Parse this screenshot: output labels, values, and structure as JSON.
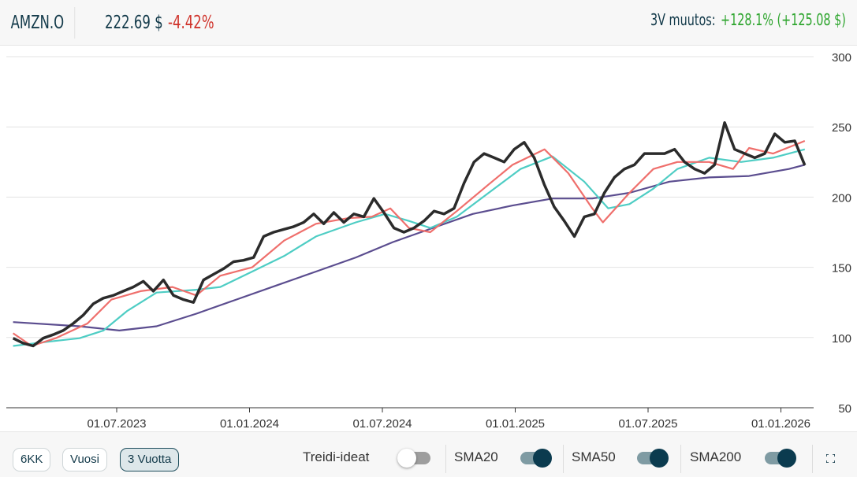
{
  "header": {
    "ticker": "AMZN.O",
    "price": "222.69 $",
    "change_pct": "-4.42%",
    "period_label": "3V muutos:",
    "period_change": "+128.1% (+125.08 $)"
  },
  "controls": {
    "ranges": [
      {
        "label": "6KK",
        "active": false
      },
      {
        "label": "Vuosi",
        "active": false
      },
      {
        "label": "3 Vuotta",
        "active": true
      }
    ],
    "toggles": [
      {
        "label": "Treidi-ideat",
        "on": false
      },
      {
        "label": "SMA20",
        "on": true
      },
      {
        "label": "SMA50",
        "on": true
      },
      {
        "label": "SMA200",
        "on": true
      }
    ]
  },
  "colors": {
    "price": "#2b2b2b",
    "sma20": "#ef6f6c",
    "sma50": "#4ecdc4",
    "sma200": "#5b4d8f",
    "accent": "#0b3b4f"
  },
  "chart_data": {
    "type": "line",
    "title": "AMZN.O",
    "xlabel": "",
    "ylabel": "",
    "ylim": [
      50,
      300
    ],
    "yticks": [
      50,
      100,
      150,
      200,
      250,
      300
    ],
    "xlim": [
      2023.11,
      2026.1
    ],
    "xticks": [
      {
        "x": 2023.5,
        "label": "01.07.2023"
      },
      {
        "x": 2024.0,
        "label": "01.01.2024"
      },
      {
        "x": 2024.5,
        "label": "01.07.2024"
      },
      {
        "x": 2025.0,
        "label": "01.01.2025"
      },
      {
        "x": 2025.5,
        "label": "01.07.2025"
      },
      {
        "x": 2026.0,
        "label": "01.01.2026"
      }
    ],
    "grid": true,
    "series": [
      {
        "name": "AMZN.O",
        "key": "price",
        "x_start": 2023.11,
        "x_end": 2026.09,
        "values": [
          99.5,
          96,
          94,
          99.5,
          102,
          105,
          110,
          116,
          124,
          128,
          130,
          133,
          136,
          140,
          133,
          141,
          130,
          127,
          125,
          141,
          145,
          149,
          154,
          155,
          157,
          172,
          175,
          177,
          179,
          182,
          188,
          181,
          189,
          182,
          188,
          186,
          199,
          189,
          178,
          175,
          178,
          183,
          190,
          188,
          192,
          210,
          225,
          231,
          228,
          225,
          234,
          239,
          228,
          209,
          193,
          183,
          172,
          186,
          188,
          203,
          214,
          220,
          223,
          231,
          231,
          231,
          234,
          225,
          220,
          217,
          223,
          253,
          234,
          231,
          228,
          231,
          245,
          239,
          240,
          222.69
        ]
      },
      {
        "name": "SMA20",
        "key": "sma20",
        "points": [
          [
            2023.11,
            103
          ],
          [
            2023.18,
            94
          ],
          [
            2023.27,
            99.5
          ],
          [
            2023.39,
            110
          ],
          [
            2023.48,
            127
          ],
          [
            2023.59,
            133
          ],
          [
            2023.71,
            136
          ],
          [
            2023.8,
            130
          ],
          [
            2023.89,
            144
          ],
          [
            2024.01,
            150
          ],
          [
            2024.13,
            169
          ],
          [
            2024.25,
            181
          ],
          [
            2024.37,
            185
          ],
          [
            2024.46,
            186
          ],
          [
            2024.53,
            192
          ],
          [
            2024.6,
            178
          ],
          [
            2024.68,
            175
          ],
          [
            2024.78,
            190
          ],
          [
            2024.9,
            209
          ],
          [
            2024.99,
            223
          ],
          [
            2025.11,
            234
          ],
          [
            2025.2,
            217
          ],
          [
            2025.29,
            192
          ],
          [
            2025.33,
            182
          ],
          [
            2025.43,
            203
          ],
          [
            2025.52,
            220
          ],
          [
            2025.61,
            225
          ],
          [
            2025.73,
            225
          ],
          [
            2025.82,
            220
          ],
          [
            2025.88,
            235
          ],
          [
            2025.97,
            231
          ],
          [
            2026.09,
            240
          ]
        ]
      },
      {
        "name": "SMA50",
        "key": "sma50",
        "points": [
          [
            2023.11,
            94
          ],
          [
            2023.24,
            97
          ],
          [
            2023.36,
            99.5
          ],
          [
            2023.45,
            105
          ],
          [
            2023.54,
            119
          ],
          [
            2023.65,
            132
          ],
          [
            2023.8,
            134
          ],
          [
            2023.89,
            136
          ],
          [
            2024.01,
            147
          ],
          [
            2024.13,
            158
          ],
          [
            2024.25,
            172
          ],
          [
            2024.4,
            182
          ],
          [
            2024.51,
            188
          ],
          [
            2024.6,
            183
          ],
          [
            2024.68,
            178
          ],
          [
            2024.78,
            186
          ],
          [
            2024.9,
            203
          ],
          [
            2025.02,
            220
          ],
          [
            2025.14,
            229
          ],
          [
            2025.26,
            211
          ],
          [
            2025.35,
            192
          ],
          [
            2025.43,
            195
          ],
          [
            2025.52,
            206
          ],
          [
            2025.61,
            220
          ],
          [
            2025.73,
            228
          ],
          [
            2025.85,
            225
          ],
          [
            2025.97,
            228
          ],
          [
            2026.09,
            234
          ]
        ]
      },
      {
        "name": "SMA200",
        "key": "sma200",
        "points": [
          [
            2023.11,
            111
          ],
          [
            2023.36,
            108
          ],
          [
            2023.51,
            105
          ],
          [
            2023.65,
            108
          ],
          [
            2023.8,
            117
          ],
          [
            2023.95,
            127
          ],
          [
            2024.1,
            137
          ],
          [
            2024.25,
            147
          ],
          [
            2024.4,
            157
          ],
          [
            2024.54,
            168
          ],
          [
            2024.69,
            178
          ],
          [
            2024.84,
            188
          ],
          [
            2024.99,
            194
          ],
          [
            2025.14,
            199
          ],
          [
            2025.29,
            199
          ],
          [
            2025.43,
            203
          ],
          [
            2025.58,
            211
          ],
          [
            2025.73,
            214
          ],
          [
            2025.88,
            215
          ],
          [
            2026.03,
            220
          ],
          [
            2026.09,
            223
          ]
        ]
      }
    ]
  }
}
